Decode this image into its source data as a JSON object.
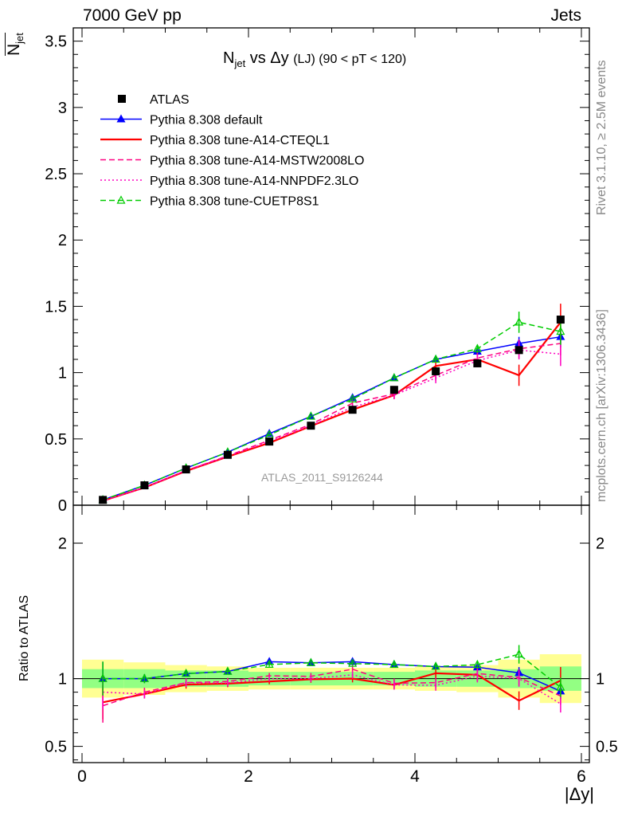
{
  "header": {
    "left": "7000 GeV pp",
    "right": "Jets"
  },
  "side": {
    "rivet": "Rivet 3.1.10, ≥ 2.5M events",
    "mcplots": "mcplots.cern.ch [arXiv:1306.3436]"
  },
  "watermark": "ATLAS_2011_S9126244",
  "chart_data": {
    "type": "line",
    "title_parts": {
      "n": "N",
      "jet_sub": "jet",
      "vs": " vs Δy ",
      "lj": "(LJ)",
      "range": " (90 < pT < 120)"
    },
    "ylabel_main": {
      "n": "N",
      "sub": "jet"
    },
    "ylabel_ratio": "Ratio to ATLAS",
    "xlabel": "|Δy|",
    "xlim": [
      0,
      6
    ],
    "ylim_main": [
      0,
      3.6
    ],
    "ylim_ratio": [
      0.38,
      2.28
    ],
    "xticks": [
      "0",
      "2",
      "4",
      "6"
    ],
    "yticks_main": [
      "0",
      "0.5",
      "1",
      "1.5",
      "2",
      "2.5",
      "3",
      "3.5"
    ],
    "yticks_ratio": [
      "0.5",
      "1",
      "2"
    ],
    "bins": [
      0,
      0.5,
      1,
      1.5,
      2,
      2.5,
      3,
      3.5,
      4,
      4.5,
      5,
      5.5,
      6
    ],
    "x": [
      0.25,
      0.75,
      1.25,
      1.75,
      2.25,
      2.75,
      3.25,
      3.75,
      4.25,
      4.75,
      5.25,
      5.75
    ],
    "data": {
      "name": "ATLAS",
      "values": [
        0.04,
        0.15,
        0.27,
        0.38,
        0.48,
        0.6,
        0.72,
        0.87,
        1.01,
        1.07,
        1.17,
        1.4
      ],
      "band_inner": [
        0.07,
        0.07,
        0.06,
        0.06,
        0.05,
        0.05,
        0.05,
        0.05,
        0.06,
        0.06,
        0.07,
        0.09
      ],
      "band_outer": [
        0.14,
        0.12,
        0.1,
        0.09,
        0.08,
        0.08,
        0.08,
        0.08,
        0.09,
        0.1,
        0.14,
        0.18
      ]
    },
    "series": [
      {
        "name": "Pythia 8.308 default",
        "color": "#0000ff",
        "style": "solid",
        "marker": "triangle",
        "values": [
          0.04,
          0.15,
          0.28,
          0.4,
          0.54,
          0.67,
          0.81,
          0.96,
          1.1,
          1.16,
          1.22,
          1.27
        ],
        "err": [
          0.005,
          0.005,
          0.005,
          0.008,
          0.008,
          0.01,
          0.01,
          0.015,
          0.02,
          0.03,
          0.05,
          0.08
        ]
      },
      {
        "name": "Pythia 8.308 tune-A14-CTEQL1",
        "color": "#ff0000",
        "style": "solid",
        "marker": "none",
        "values": [
          0.033,
          0.133,
          0.258,
          0.366,
          0.47,
          0.597,
          0.72,
          0.83,
          1.05,
          1.1,
          0.98,
          1.38
        ],
        "err": [
          0.005,
          0.005,
          0.008,
          0.01,
          0.01,
          0.015,
          0.02,
          0.03,
          0.04,
          0.05,
          0.08,
          0.14
        ]
      },
      {
        "name": "Pythia 8.308 tune-A14-MSTW2008LO",
        "color": "#ff0080",
        "style": "dashed",
        "marker": "none",
        "values": [
          0.032,
          0.135,
          0.262,
          0.372,
          0.49,
          0.61,
          0.77,
          0.84,
          0.98,
          1.11,
          1.18,
          1.22
        ],
        "err": [
          0.005,
          0.005,
          0.008,
          0.01,
          0.01,
          0.015,
          0.02,
          0.03,
          0.04,
          0.05,
          0.07,
          0.09
        ]
      },
      {
        "name": "Pythia 8.308 tune-A14-NNPDF2.3LO",
        "color": "#ff00c0",
        "style": "dotted",
        "marker": "none",
        "values": [
          0.036,
          0.133,
          0.262,
          0.368,
          0.48,
          0.6,
          0.74,
          0.83,
          0.96,
          1.09,
          1.17,
          1.14
        ],
        "err": [
          0.005,
          0.005,
          0.008,
          0.01,
          0.01,
          0.015,
          0.02,
          0.03,
          0.04,
          0.05,
          0.07,
          0.09
        ]
      },
      {
        "name": "Pythia 8.308 tune-CUETP8S1",
        "color": "#00cc00",
        "style": "dashed",
        "marker": "open-triangle",
        "values": [
          0.04,
          0.15,
          0.28,
          0.4,
          0.53,
          0.67,
          0.8,
          0.96,
          1.1,
          1.18,
          1.38,
          1.31
        ],
        "err": [
          0.005,
          0.005,
          0.005,
          0.008,
          0.008,
          0.01,
          0.01,
          0.015,
          0.02,
          0.03,
          0.08,
          0.1
        ]
      }
    ]
  }
}
